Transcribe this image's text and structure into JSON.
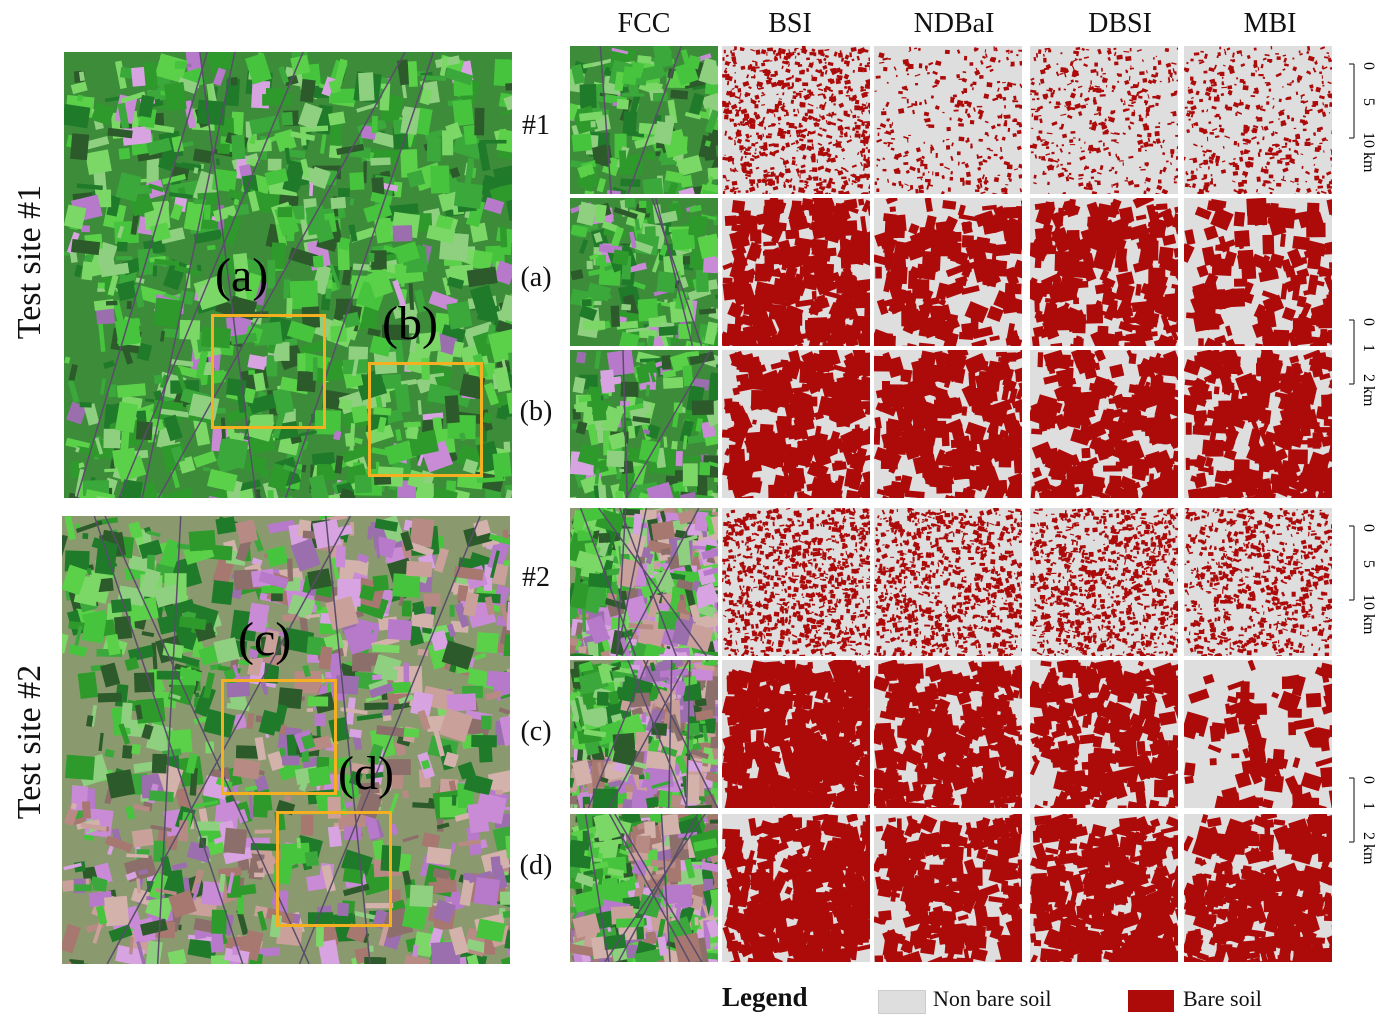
{
  "site_labels": [
    "Test site #1",
    "Test site #2"
  ],
  "columns": [
    "FCC",
    "BSI",
    "NDBaI",
    "DBSI",
    "MBI"
  ],
  "rows": [
    {
      "label": "#1",
      "group": "site1-overview"
    },
    {
      "label": "(a)",
      "group": "site1-a"
    },
    {
      "label": "(b)",
      "group": "site1-b"
    },
    {
      "label": "#2",
      "group": "site2-overview"
    },
    {
      "label": "(c)",
      "group": "site2-c"
    },
    {
      "label": "(d)",
      "group": "site2-d"
    }
  ],
  "roi_labels": {
    "a": "(a)",
    "b": "(b)",
    "c": "(c)",
    "d": "(d)"
  },
  "scale_bars": [
    {
      "ticks": [
        "0",
        "5",
        "10 km"
      ]
    },
    {
      "ticks": [
        "0",
        "1",
        "2 km"
      ]
    },
    {
      "ticks": [
        "0",
        "5",
        "10 km"
      ]
    },
    {
      "ticks": [
        "0",
        "1",
        "2 km"
      ]
    }
  ],
  "legend": {
    "title": "Legend",
    "items": [
      {
        "label": "Non bare soil",
        "color": "#dedede"
      },
      {
        "label": "Bare soil",
        "color": "#ad0a0a"
      }
    ]
  },
  "colors": {
    "roi_box": "#f5b021",
    "bare_soil": "#ad0a0a",
    "non_bare_soil": "#dedede",
    "vegetation": "#3fbf3a",
    "urban": "#c98ad6"
  }
}
